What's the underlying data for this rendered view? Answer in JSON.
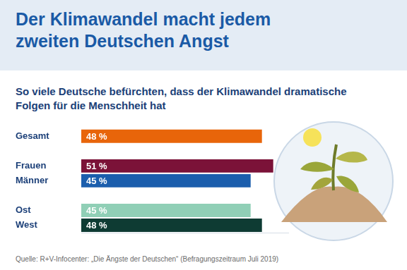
{
  "chart_data": {
    "type": "bar",
    "title": "Der Klimawandel macht jedem zweiten Deutschen Angst",
    "subtitle": "So viele Deutsche befürchten, dass der Klimawandel dramatische Folgen für die Menschheit hat",
    "source": "Quelle: R+V-Infocenter: „Die Ängste der Deutschen“ (Befragungszeitraum Juli 2019)",
    "categories": [
      "Gesamt",
      null,
      "Frauen",
      "Männer",
      null,
      "Ost",
      "West"
    ],
    "values": [
      48,
      null,
      51,
      45,
      null,
      45,
      48
    ],
    "value_labels": [
      "48 %",
      null,
      "51 %",
      "45 %",
      null,
      "45 %",
      "48 %"
    ],
    "colors": [
      "#e8650a",
      null,
      "#7b1238",
      "#1b5ead",
      null,
      "#90cfb6",
      "#0e3b33"
    ],
    "orientation": "horizontal",
    "xlim": [
      0,
      55
    ],
    "grid": false,
    "data_labels": true,
    "tick_labels": "y"
  }
}
